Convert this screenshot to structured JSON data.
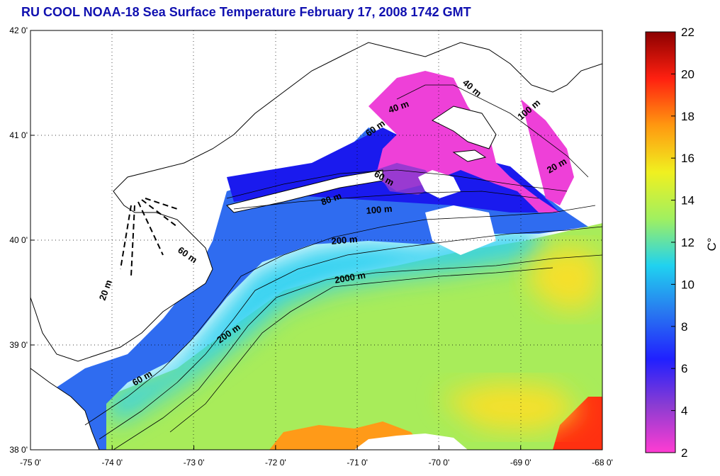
{
  "title": "RU COOL  NOAA-18 Sea Surface Temperature February 17, 2008 1742 GMT",
  "map": {
    "lon_range": [
      -75,
      -68
    ],
    "lat_range": [
      38,
      42
    ],
    "lon_ticks": [
      "-75 0'",
      "-74 0'",
      "-73 0'",
      "-72 0'",
      "-71 0'",
      "-70 0'",
      "-69 0'",
      "-68 0'"
    ],
    "lat_ticks": [
      "38 0'",
      "39 0'",
      "40 0'",
      "41 0'",
      "42 0'"
    ],
    "grid": "dotted",
    "contour_labels": [
      {
        "text": "20 m"
      },
      {
        "text": "40 m"
      },
      {
        "text": "40 m"
      },
      {
        "text": "60 m"
      },
      {
        "text": "60 m"
      },
      {
        "text": "60 m"
      },
      {
        "text": "80 m"
      },
      {
        "text": "100 m"
      },
      {
        "text": "100 m"
      },
      {
        "text": "200 m"
      },
      {
        "text": "200 m"
      },
      {
        "text": "2000 m"
      },
      {
        "text": "60 m"
      },
      {
        "text": "20 m"
      }
    ]
  },
  "colorbar": {
    "min": 2,
    "max": 22,
    "ticks": [
      "2",
      "4",
      "6",
      "8",
      "10",
      "12",
      "14",
      "16",
      "18",
      "20",
      "22"
    ],
    "unit_label": "C°",
    "colors": [
      "#ff3cd2",
      "#8c3cd2",
      "#2020ff",
      "#2878f0",
      "#20d2f0",
      "#a0f060",
      "#f0f020",
      "#ff9810",
      "#ff2010",
      "#8c0000"
    ]
  }
}
